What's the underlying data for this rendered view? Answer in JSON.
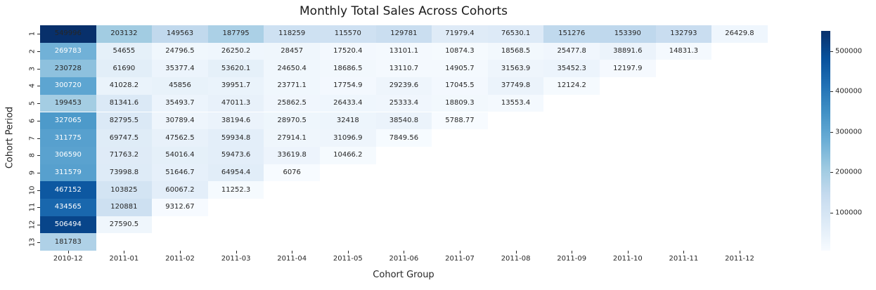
{
  "chart_data": {
    "type": "heatmap",
    "title": "Monthly Total Sales Across Cohorts",
    "xlabel": "Cohort Group",
    "ylabel": "Cohort Period",
    "x_categories": [
      "2010-12",
      "2011-01",
      "2011-02",
      "2011-03",
      "2011-04",
      "2011-05",
      "2011-06",
      "2011-07",
      "2011-08",
      "2011-09",
      "2011-10",
      "2011-11",
      "2011-12"
    ],
    "y_categories": [
      "1",
      "2",
      "3",
      "4",
      "5",
      "6",
      "7",
      "8",
      "9",
      "10",
      "11",
      "12",
      "13"
    ],
    "rows": [
      [
        "549996",
        "203132",
        "149563",
        "187795",
        "118259",
        "115570",
        "129781",
        "71979.4",
        "76530.1",
        "151276",
        "153390",
        "132793",
        "26429.8"
      ],
      [
        "269783",
        "54655",
        "24796.5",
        "26250.2",
        "28457",
        "17520.4",
        "13101.1",
        "10874.3",
        "18568.5",
        "25477.8",
        "38891.6",
        "14831.3"
      ],
      [
        "230728",
        "61690",
        "35377.4",
        "53620.1",
        "24650.4",
        "18686.5",
        "13110.7",
        "14905.7",
        "31563.9",
        "35452.3",
        "12197.9"
      ],
      [
        "300720",
        "41028.2",
        "45856",
        "39951.7",
        "23771.1",
        "17754.9",
        "29239.6",
        "17045.5",
        "37749.8",
        "12124.2"
      ],
      [
        "199453",
        "81341.6",
        "35493.7",
        "47011.3",
        "25862.5",
        "26433.4",
        "25333.4",
        "18809.3",
        "13553.4"
      ],
      [
        "327065",
        "82795.5",
        "30789.4",
        "38194.6",
        "28970.5",
        "32418",
        "38540.8",
        "5788.77"
      ],
      [
        "311775",
        "69747.5",
        "47562.5",
        "59934.8",
        "27914.1",
        "31096.9",
        "7849.56"
      ],
      [
        "306590",
        "71763.2",
        "54016.4",
        "59473.6",
        "33619.8",
        "10466.2"
      ],
      [
        "311579",
        "73998.8",
        "51646.7",
        "64954.4",
        "6076"
      ],
      [
        "467152",
        "103825",
        "60067.2",
        "11252.3"
      ],
      [
        "434565",
        "120881",
        "9312.67"
      ],
      [
        "506494",
        "27590.5"
      ],
      [
        "181783"
      ]
    ],
    "vmin": 5788.77,
    "vmax": 549996,
    "colormap": "Blues",
    "colormap_hex": [
      "#f7fbff",
      "#deebf7",
      "#c6dbef",
      "#9ecae1",
      "#6baed6",
      "#4292c6",
      "#2171b5",
      "#08519c",
      "#08306b"
    ],
    "colorbar_tick_values": [
      100000,
      200000,
      300000,
      400000,
      500000
    ],
    "colorbar_tick_labels": [
      "100000",
      "200000",
      "300000",
      "400000",
      "500000"
    ],
    "annotation_dark_color": "#262626",
    "annotation_light_color": "#ffffff",
    "dark_text_override_cells": [
      [
        0,
        0
      ]
    ],
    "legend_position": "right",
    "grid": false
  }
}
